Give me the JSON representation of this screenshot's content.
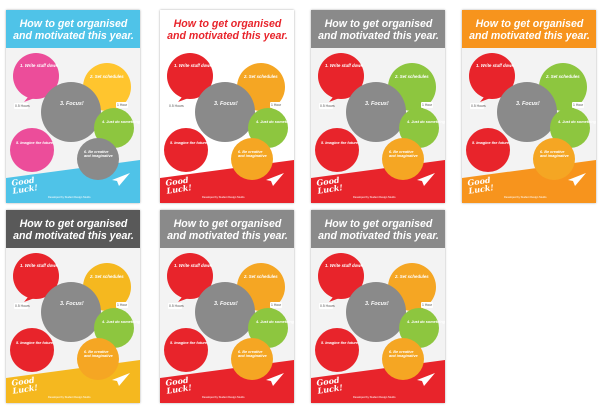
{
  "poster_text": {
    "title_line1": "How to get organised",
    "title_line2": "and motivated this year.",
    "step1": "1. Write stuff down",
    "step2": "2. Set schedules",
    "step3": "3. Focus!",
    "step4": "4. Just do something",
    "step5": "5. Imagine the future",
    "step6a": "6. Be creative",
    "step6b": "and imaginative",
    "tag_left": "0.5 Hours",
    "tag_right": "1 Hour",
    "good": "Good",
    "luck": "Luck!",
    "credit": "Developed by Student Design Studio"
  },
  "variants": [
    {
      "id": "v1",
      "background": "#f3f3f3",
      "header": "#4fc3e8",
      "title_color": "#ffffff",
      "footer": "#4fc3e8",
      "c1": "#ec4d9a",
      "c2": "#ffc52e",
      "c3": "#8a8a8a",
      "c4": "#8dc63f",
      "c5": "#ec4d9a",
      "c6": "#8a8a8a"
    },
    {
      "id": "v2",
      "background": "#ffffff",
      "header": "#ffffff",
      "title_color": "#e8242b",
      "footer": "#e8242b",
      "c1": "#e8242b",
      "c2": "#f5a623",
      "c3": "#8a8a8a",
      "c4": "#8dc63f",
      "c5": "#e8242b",
      "c6": "#f5a623"
    },
    {
      "id": "v3",
      "background": "#f3f3f3",
      "header": "#8a8a8a",
      "title_color": "#ffffff",
      "footer": "#e8242b",
      "c1": "#e8242b",
      "c2": "#8dc63f",
      "c3": "#8a8a8a",
      "c4": "#8dc63f",
      "c5": "#e8242b",
      "c6": "#f5a623"
    },
    {
      "id": "v4",
      "background": "#f3f3f3",
      "header": "#f7941d",
      "title_color": "#ffffff",
      "footer": "#f7941d",
      "c1": "#e8242b",
      "c2": "#8dc63f",
      "c3": "#8a8a8a",
      "c4": "#8dc63f",
      "c5": "#e8242b",
      "c6": "#f5a623"
    },
    {
      "id": "v5",
      "background": "#f3f3f3",
      "header": "#595959",
      "title_color": "#ffffff",
      "footer": "#f5b81f",
      "c1": "#e8242b",
      "c2": "#f5b81f",
      "c3": "#8a8a8a",
      "c4": "#8dc63f",
      "c5": "#e8242b",
      "c6": "#f5a623"
    },
    {
      "id": "v6",
      "background": "#f3f3f3",
      "header": "#8a8a8a",
      "title_color": "#ffffff",
      "footer": "#e8242b",
      "c1": "#e8242b",
      "c2": "#f5a623",
      "c3": "#8a8a8a",
      "c4": "#8dc63f",
      "c5": "#e8242b",
      "c6": "#f5a623"
    },
    {
      "id": "v7",
      "background": "#f3f3f3",
      "header": "#8a8a8a",
      "title_color": "#ffffff",
      "footer": "#e8242b",
      "c1": "#e8242b",
      "c2": "#f5a623",
      "c3": "#8a8a8a",
      "c4": "#8dc63f",
      "c5": "#e8242b",
      "c6": "#f5a623"
    }
  ]
}
